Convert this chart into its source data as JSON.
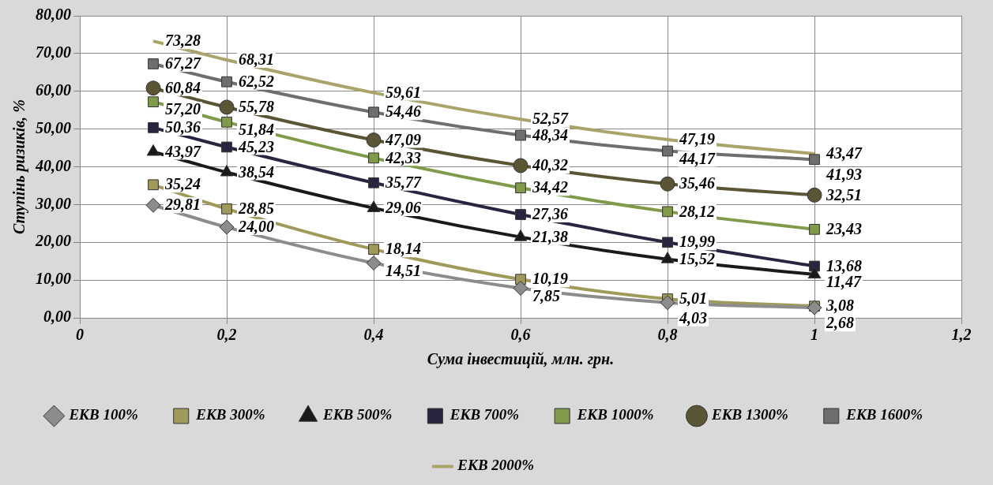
{
  "chart_data": {
    "type": "line",
    "xlabel": "Сума інвестицій, млн. грн.",
    "ylabel": "Ступінь ризиків, %",
    "x": [
      0.1,
      0.2,
      0.4,
      0.6,
      0.8,
      1
    ],
    "xlim": [
      0,
      1.2
    ],
    "xticks": [
      0,
      {
        "value": 0.2,
        "label": "0,2"
      },
      {
        "value": 0.4,
        "label": "0,4"
      },
      {
        "value": 0.6,
        "label": "0,6"
      },
      {
        "value": 0.8,
        "label": "0,8"
      },
      1,
      {
        "value": 1.2,
        "label": "1,2"
      }
    ],
    "ylim": [
      0,
      80
    ],
    "yticks": [
      {
        "value": 0,
        "label": "0,00"
      },
      {
        "value": 10,
        "label": "10,00"
      },
      {
        "value": 20,
        "label": "20,00"
      },
      {
        "value": 30,
        "label": "30,00"
      },
      {
        "value": 40,
        "label": "40,00"
      },
      {
        "value": 50,
        "label": "50,00"
      },
      {
        "value": 60,
        "label": "60,00"
      },
      {
        "value": 70,
        "label": "70,00"
      },
      {
        "value": 80,
        "label": "80,00"
      }
    ],
    "grid": true,
    "legend": "bottom",
    "series": [
      {
        "name": "ЕКВ 100%",
        "color": "#8c8c8c",
        "marker": "diamond",
        "values": [
          29.81,
          24.0,
          14.51,
          7.85,
          4.03,
          2.68
        ],
        "value_labels": [
          "29,81",
          "24,00",
          "14,51",
          "7,85",
          "4,03",
          "2,68"
        ]
      },
      {
        "name": "ЕКВ 300%",
        "color": "#a09a5a",
        "marker": "square",
        "values": [
          35.24,
          28.85,
          18.14,
          10.19,
          5.01,
          3.08
        ],
        "value_labels": [
          "35,24",
          "28,85",
          "18,14",
          "10,19",
          "5,01",
          "3,08"
        ]
      },
      {
        "name": "ЕКВ 500%",
        "color": "#1a1a1a",
        "marker": "triangle",
        "values": [
          43.97,
          38.54,
          29.06,
          21.38,
          15.52,
          11.47
        ],
        "value_labels": [
          "43,97",
          "38,54",
          "29,06",
          "21,38",
          "15,52",
          "11,47"
        ]
      },
      {
        "name": "ЕКВ 700%",
        "color": "#2a2440",
        "marker": "square",
        "values": [
          50.36,
          45.23,
          35.77,
          27.36,
          19.99,
          13.68
        ],
        "value_labels": [
          "50,36",
          "45,23",
          "35,77",
          "27,36",
          "19,99",
          "13,68"
        ]
      },
      {
        "name": "ЕКВ 1000%",
        "color": "#7f9a48",
        "marker": "square",
        "values": [
          57.2,
          51.84,
          42.33,
          34.42,
          28.12,
          23.43
        ],
        "value_labels": [
          "57,20",
          "51,84",
          "42,33",
          "34,42",
          "28,12",
          "23,43"
        ]
      },
      {
        "name": "ЕКВ 1300%",
        "color": "#5a5535",
        "marker": "circle",
        "values": [
          60.84,
          55.78,
          47.09,
          40.32,
          35.46,
          32.51
        ],
        "value_labels": [
          "60,84",
          "55,78",
          "47,09",
          "40,32",
          "35,46",
          "32,51"
        ]
      },
      {
        "name": "ЕКВ 1600%",
        "color": "#6e6e6e",
        "marker": "square",
        "values": [
          67.27,
          62.52,
          54.46,
          48.34,
          44.17,
          41.93
        ],
        "value_labels": [
          "67,27",
          "62,52",
          "54,46",
          "48,34",
          "44,17",
          "41,93"
        ]
      },
      {
        "name": "ЕКВ 2000%",
        "color": "#aaa36a",
        "marker": "none",
        "values": [
          73.28,
          68.31,
          59.61,
          52.57,
          47.19,
          43.47
        ],
        "value_labels": [
          "73,28",
          "68,31",
          "59,61",
          "52,57",
          "47,19",
          "43,47"
        ]
      }
    ]
  }
}
